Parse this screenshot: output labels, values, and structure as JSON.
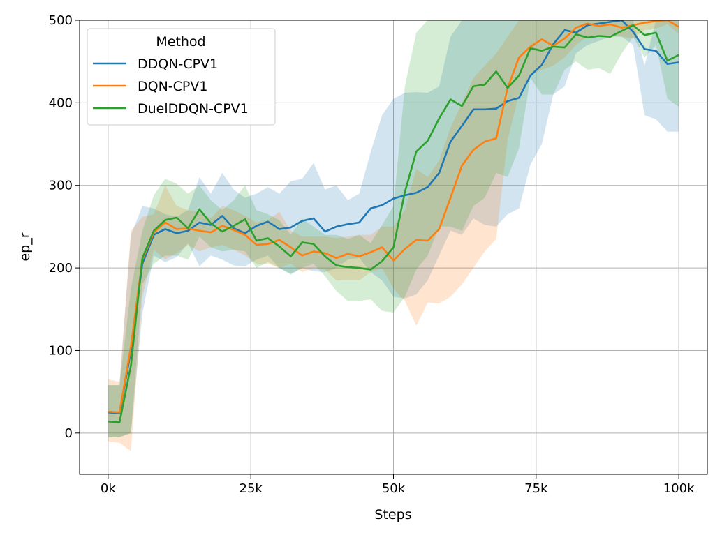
{
  "chart_data": {
    "type": "line",
    "title": "",
    "xlabel": "Steps",
    "ylabel": "ep_r",
    "xlim": [
      -5000,
      105000
    ],
    "ylim": [
      -50,
      500
    ],
    "grid": true,
    "xticks": [
      {
        "value": 0,
        "label": "0k"
      },
      {
        "value": 25000,
        "label": "25k"
      },
      {
        "value": 50000,
        "label": "50k"
      },
      {
        "value": 75000,
        "label": "75k"
      },
      {
        "value": 100000,
        "label": "100k"
      }
    ],
    "yticks": [
      {
        "value": 0,
        "label": "0"
      },
      {
        "value": 100,
        "label": "100"
      },
      {
        "value": 200,
        "label": "200"
      },
      {
        "value": 300,
        "label": "300"
      },
      {
        "value": 400,
        "label": "400"
      },
      {
        "value": 500,
        "label": "500"
      }
    ],
    "legend": {
      "title": "Method",
      "placement": "upper-left"
    },
    "x": [
      0,
      2000,
      4000,
      6000,
      8000,
      10000,
      12000,
      14000,
      16000,
      18000,
      20000,
      22000,
      24000,
      26000,
      28000,
      30000,
      32000,
      34000,
      36000,
      38000,
      40000,
      42000,
      44000,
      46000,
      48000,
      50000,
      52000,
      54000,
      56000,
      58000,
      60000,
      62000,
      64000,
      66000,
      68000,
      70000,
      72000,
      74000,
      76000,
      78000,
      80000,
      82000,
      84000,
      86000,
      88000,
      90000,
      92000,
      94000,
      96000,
      98000,
      100000
    ],
    "series": [
      {
        "name": "DDQN-CPV1",
        "color": "#1f77b4",
        "values": [
          25,
          24,
          100,
          205,
          240,
          247,
          242,
          245,
          255,
          252,
          263,
          248,
          242,
          251,
          256,
          247,
          249,
          257,
          260,
          244,
          250,
          253,
          255,
          272,
          276,
          284,
          288,
          291,
          298,
          315,
          353,
          372,
          392,
          392,
          393,
          402,
          406,
          433,
          446,
          471,
          488,
          485,
          494,
          496,
          498,
          500,
          486,
          465,
          463,
          447,
          449
        ],
        "upper": [
          58,
          58,
          240,
          275,
          272,
          265,
          262,
          270,
          310,
          290,
          315,
          295,
          285,
          290,
          298,
          290,
          305,
          308,
          327,
          295,
          300,
          282,
          290,
          340,
          385,
          405,
          412,
          413,
          412,
          420,
          480,
          500,
          500,
          500,
          500,
          500,
          500,
          500,
          500,
          500,
          500,
          500,
          500,
          500,
          500,
          500,
          500,
          445,
          500,
          500,
          500
        ],
        "lower": [
          -5,
          -5,
          0,
          145,
          215,
          207,
          213,
          230,
          202,
          215,
          210,
          203,
          202,
          210,
          215,
          200,
          192,
          200,
          196,
          195,
          200,
          210,
          212,
          195,
          185,
          165,
          163,
          168,
          185,
          215,
          245,
          240,
          260,
          252,
          250,
          265,
          272,
          325,
          350,
          410,
          420,
          460,
          470,
          475,
          480,
          480,
          470,
          385,
          380,
          365,
          365
        ]
      },
      {
        "name": "DQN-CPV1",
        "color": "#ff7f0e",
        "values": [
          26,
          25,
          105,
          210,
          243,
          255,
          247,
          248,
          245,
          243,
          251,
          246,
          240,
          228,
          229,
          234,
          225,
          215,
          220,
          218,
          212,
          217,
          214,
          219,
          225,
          209,
          223,
          234,
          233,
          247,
          285,
          324,
          343,
          353,
          357,
          418,
          455,
          468,
          477,
          469,
          478,
          491,
          496,
          493,
          495,
          491,
          494,
          497,
          499,
          500,
          492
        ],
        "upper": [
          65,
          62,
          245,
          262,
          265,
          300,
          275,
          270,
          268,
          260,
          275,
          270,
          263,
          255,
          258,
          268,
          245,
          238,
          238,
          238,
          236,
          238,
          240,
          240,
          250,
          250,
          270,
          320,
          310,
          330,
          370,
          400,
          430,
          445,
          460,
          480,
          500,
          500,
          500,
          500,
          500,
          500,
          500,
          500,
          500,
          500,
          500,
          500,
          500,
          500,
          500
        ],
        "lower": [
          -10,
          -12,
          -22,
          165,
          222,
          210,
          218,
          228,
          220,
          225,
          228,
          222,
          215,
          205,
          205,
          200,
          205,
          195,
          200,
          198,
          185,
          185,
          185,
          195,
          200,
          175,
          160,
          130,
          158,
          157,
          165,
          180,
          200,
          220,
          235,
          355,
          410,
          435,
          440,
          445,
          455,
          470,
          480,
          480,
          482,
          480,
          478,
          488,
          490,
          495,
          483
        ]
      },
      {
        "name": "DuelDDQN-CPV1",
        "color": "#2ca02c",
        "values": [
          14,
          13,
          82,
          212,
          245,
          258,
          261,
          248,
          271,
          254,
          244,
          251,
          259,
          233,
          236,
          226,
          214,
          231,
          229,
          214,
          203,
          201,
          200,
          198,
          208,
          225,
          292,
          341,
          354,
          381,
          404,
          396,
          420,
          422,
          438,
          418,
          433,
          466,
          463,
          468,
          467,
          483,
          479,
          481,
          480,
          487,
          494,
          482,
          485,
          451,
          458
        ],
        "upper": [
          58,
          58,
          175,
          245,
          288,
          308,
          302,
          290,
          300,
          282,
          270,
          282,
          300,
          270,
          265,
          258,
          240,
          260,
          250,
          240,
          240,
          235,
          240,
          230,
          252,
          275,
          420,
          485,
          500,
          500,
          500,
          500,
          500,
          500,
          500,
          500,
          500,
          500,
          500,
          500,
          500,
          500,
          500,
          500,
          500,
          500,
          500,
          500,
          500,
          500,
          500
        ],
        "lower": [
          -5,
          -5,
          0,
          180,
          205,
          215,
          215,
          210,
          238,
          225,
          220,
          222,
          220,
          200,
          207,
          200,
          193,
          200,
          205,
          190,
          172,
          160,
          160,
          162,
          148,
          146,
          165,
          198,
          215,
          250,
          250,
          245,
          275,
          285,
          315,
          310,
          345,
          430,
          410,
          410,
          440,
          450,
          440,
          442,
          435,
          460,
          480,
          455,
          470,
          405,
          395
        ]
      }
    ]
  }
}
